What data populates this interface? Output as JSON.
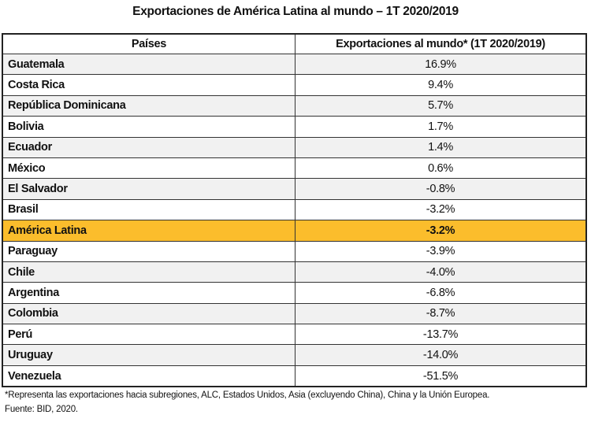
{
  "title": "Exportaciones de América Latina al mundo – 1T 2020/2019",
  "table": {
    "headers": [
      "Países",
      "Exportaciones al mundo* (1T 2020/2019)"
    ],
    "rows": [
      {
        "country": "Guatemala",
        "value": "16.9%",
        "style": "gray"
      },
      {
        "country": "Costa Rica",
        "value": "9.4%",
        "style": "white"
      },
      {
        "country": "República Dominicana",
        "value": "5.7%",
        "style": "gray"
      },
      {
        "country": "Bolivia",
        "value": "1.7%",
        "style": "white"
      },
      {
        "country": "Ecuador",
        "value": "1.4%",
        "style": "gray"
      },
      {
        "country": "México",
        "value": "0.6%",
        "style": "white"
      },
      {
        "country": "El Salvador",
        "value": "-0.8%",
        "style": "gray"
      },
      {
        "country": "Brasil",
        "value": "-3.2%",
        "style": "white"
      },
      {
        "country": "América Latina",
        "value": "-3.2%",
        "style": "hl"
      },
      {
        "country": "Paraguay",
        "value": "-3.9%",
        "style": "white"
      },
      {
        "country": "Chile",
        "value": "-4.0%",
        "style": "gray"
      },
      {
        "country": "Argentina",
        "value": "-6.8%",
        "style": "white"
      },
      {
        "country": "Colombia",
        "value": "-8.7%",
        "style": "gray"
      },
      {
        "country": "Perú",
        "value": "-13.7%",
        "style": "white"
      },
      {
        "country": "Uruguay",
        "value": "-14.0%",
        "style": "gray"
      },
      {
        "country": "Venezuela",
        "value": "-51.5%",
        "style": "white"
      }
    ]
  },
  "colors": {
    "highlight": "#fbbd2c",
    "stripe": "#f1f1f1"
  },
  "footnote": "*Representa las exportaciones hacia subregiones, ALC, Estados Unidos, Asia (excluyendo China), China y la Unión Europea.",
  "source": "Fuente: BID, 2020."
}
